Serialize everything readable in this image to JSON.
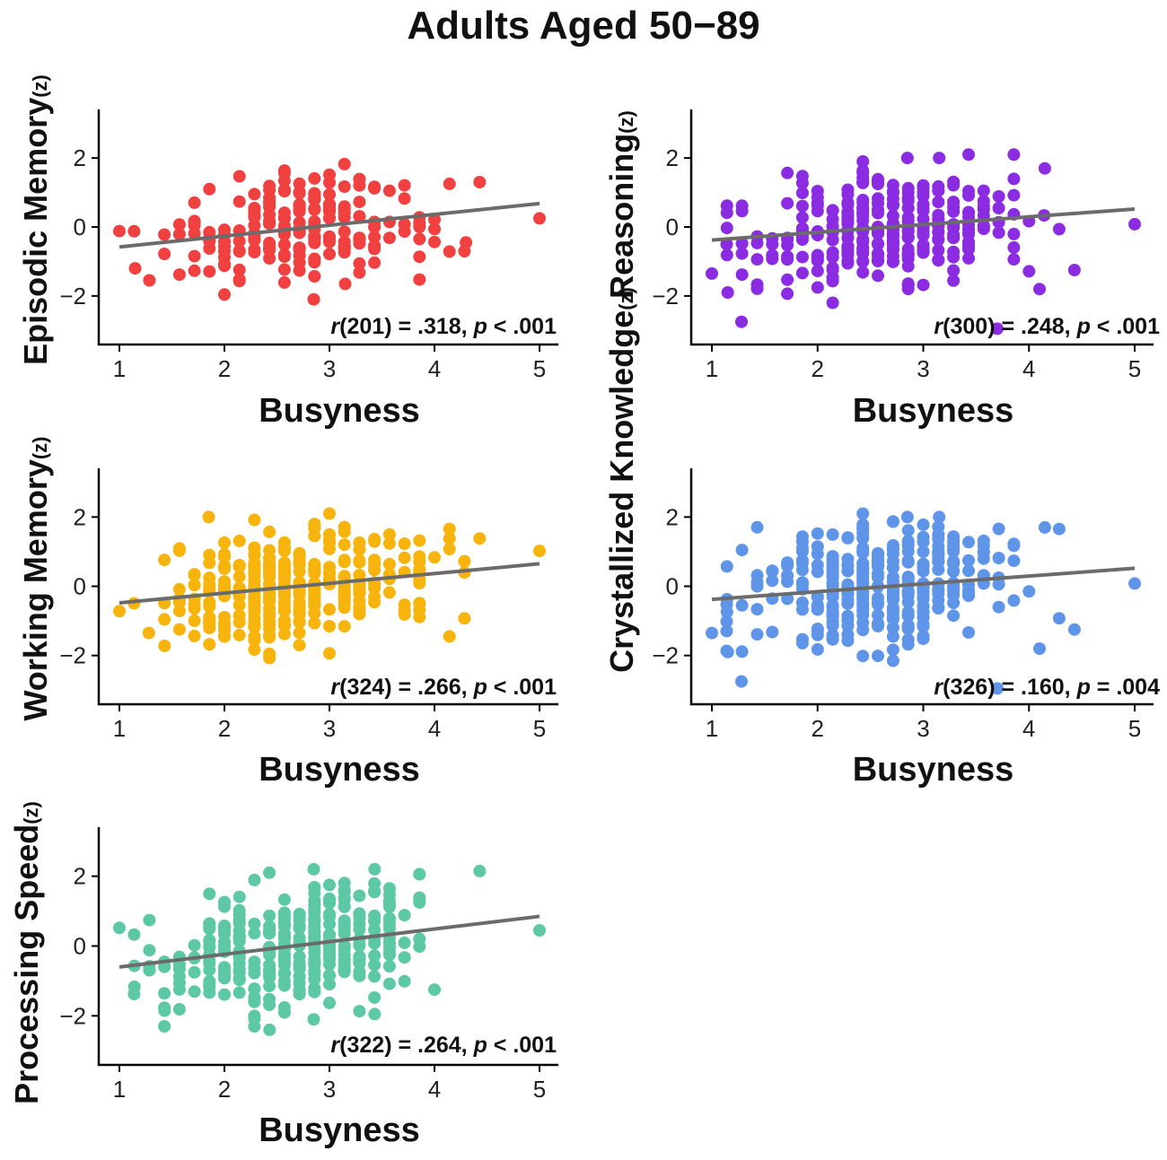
{
  "figure": {
    "title": "Adults Aged 50−89"
  },
  "chart_data": [
    {
      "type": "scatter",
      "id": "episodic",
      "ylabel": "Episodic Memory",
      "ylabel_sub": "(z)",
      "xlabel": "Busyness",
      "color": "#f04040",
      "stat": {
        "r_symbol": "r",
        "df": "(201) = .318, ",
        "p_symbol": "p",
        "p_text": " < .001"
      },
      "xlim": [
        1,
        5
      ],
      "ylim": [
        -3.2,
        3.2
      ],
      "xticks": [
        1,
        2,
        3,
        4,
        5
      ],
      "yticks": [
        -2,
        0,
        2
      ],
      "ytick_labels": [
        "−2",
        "0",
        "2"
      ],
      "fit": {
        "x": [
          1,
          5
        ],
        "y": [
          -0.58,
          0.68
        ]
      },
      "n_points": 201,
      "seed": 11,
      "x_center": 2.7,
      "x_spread": 0.62,
      "y_spread": 0.75,
      "extra_points": [
        [
          1.0,
          -0.12
        ],
        [
          5.0,
          0.25
        ],
        [
          4.43,
          1.3
        ],
        [
          4.3,
          -0.45
        ],
        [
          2.85,
          -2.1
        ],
        [
          3.15,
          -1.65
        ],
        [
          1.15,
          -1.2
        ]
      ]
    },
    {
      "type": "scatter",
      "id": "reasoning",
      "ylabel": "Reasoning",
      "ylabel_sub": "(z)",
      "xlabel": "Busyness",
      "color": "#8b2be2",
      "stat": {
        "r_symbol": "r",
        "df": "(300) = .248, ",
        "p_symbol": "p",
        "p_text": " < .001"
      },
      "xlim": [
        1,
        5
      ],
      "ylim": [
        -3.2,
        3.2
      ],
      "xticks": [
        1,
        2,
        3,
        4,
        5
      ],
      "yticks": [
        -2,
        0,
        2
      ],
      "ytick_labels": [
        "−2",
        "0",
        "2"
      ],
      "fit": {
        "x": [
          1,
          5
        ],
        "y": [
          -0.38,
          0.52
        ]
      },
      "n_points": 300,
      "seed": 23,
      "x_center": 2.6,
      "x_spread": 0.6,
      "y_spread": 0.85,
      "extra_points": [
        [
          1.0,
          -1.35
        ],
        [
          1.15,
          -1.9
        ],
        [
          1.28,
          -2.75
        ],
        [
          5.0,
          0.08
        ],
        [
          3.7,
          -2.95
        ],
        [
          4.1,
          -1.8
        ],
        [
          4.43,
          -1.25
        ],
        [
          2.85,
          2.0
        ],
        [
          3.15,
          2.0
        ],
        [
          4.15,
          1.7
        ]
      ]
    },
    {
      "type": "scatter",
      "id": "working",
      "ylabel": "Working Memory",
      "ylabel_sub": "(z)",
      "xlabel": "Busyness",
      "color": "#f6b40c",
      "stat": {
        "r_symbol": "r",
        "df": "(324) = .266, ",
        "p_symbol": "p",
        "p_text": " < .001"
      },
      "xlim": [
        1,
        5
      ],
      "ylim": [
        -3.2,
        3.2
      ],
      "xticks": [
        1,
        2,
        3,
        4,
        5
      ],
      "yticks": [
        -2,
        0,
        2
      ],
      "ytick_labels": [
        "−2",
        "0",
        "2"
      ],
      "fit": {
        "x": [
          1,
          5
        ],
        "y": [
          -0.48,
          0.65
        ]
      },
      "n_points": 324,
      "seed": 37,
      "x_center": 2.7,
      "x_spread": 0.62,
      "y_spread": 0.8,
      "extra_points": [
        [
          1.0,
          -0.72
        ],
        [
          5.0,
          1.02
        ],
        [
          4.43,
          1.38
        ],
        [
          1.85,
          2.0
        ],
        [
          1.28,
          -1.35
        ],
        [
          1.43,
          -1.72
        ]
      ]
    },
    {
      "type": "scatter",
      "id": "crystallized",
      "ylabel": "Crystallized Knowledge",
      "ylabel_sub": "(z)",
      "xlabel": "Busyness",
      "color": "#5f95e8",
      "stat": {
        "r_symbol": "r",
        "df": "(326) = .160, ",
        "p_symbol": "p",
        "p_text": " = .004"
      },
      "xlim": [
        1,
        5
      ],
      "ylim": [
        -3.2,
        3.2
      ],
      "xticks": [
        1,
        2,
        3,
        4,
        5
      ],
      "yticks": [
        -2,
        0,
        2
      ],
      "ytick_labels": [
        "−2",
        "0",
        "2"
      ],
      "fit": {
        "x": [
          1,
          5
        ],
        "y": [
          -0.38,
          0.52
        ]
      },
      "n_points": 326,
      "seed": 41,
      "x_center": 2.6,
      "x_spread": 0.6,
      "y_spread": 0.85,
      "extra_points": [
        [
          1.0,
          -1.35
        ],
        [
          1.15,
          -1.9
        ],
        [
          1.28,
          -2.75
        ],
        [
          5.0,
          0.08
        ],
        [
          3.7,
          -2.95
        ],
        [
          4.1,
          -1.8
        ],
        [
          4.43,
          -1.25
        ],
        [
          2.85,
          2.0
        ],
        [
          3.15,
          2.0
        ],
        [
          4.15,
          1.7
        ]
      ]
    },
    {
      "type": "scatter",
      "id": "speed",
      "ylabel": "Processing Speed",
      "ylabel_sub": "(z)",
      "xlabel": "Busyness",
      "color": "#5cc8a4",
      "stat": {
        "r_symbol": "r",
        "df": "(322) = .264, ",
        "p_symbol": "p",
        "p_text": " < .001"
      },
      "xlim": [
        1,
        5
      ],
      "ylim": [
        -3.2,
        3.2
      ],
      "xticks": [
        1,
        2,
        3,
        4,
        5
      ],
      "yticks": [
        -2,
        0,
        2
      ],
      "ytick_labels": [
        "−2",
        "0",
        "2"
      ],
      "fit": {
        "x": [
          1,
          5
        ],
        "y": [
          -0.6,
          0.85
        ]
      },
      "n_points": 322,
      "seed": 53,
      "x_center": 2.7,
      "x_spread": 0.62,
      "y_spread": 0.85,
      "extra_points": [
        [
          1.0,
          0.52
        ],
        [
          5.0,
          0.45
        ],
        [
          4.43,
          2.15
        ],
        [
          2.85,
          2.2
        ],
        [
          3.43,
          2.2
        ],
        [
          2.43,
          -2.4
        ],
        [
          1.43,
          -1.85
        ],
        [
          2.85,
          -2.1
        ],
        [
          3.43,
          -1.95
        ]
      ]
    }
  ]
}
